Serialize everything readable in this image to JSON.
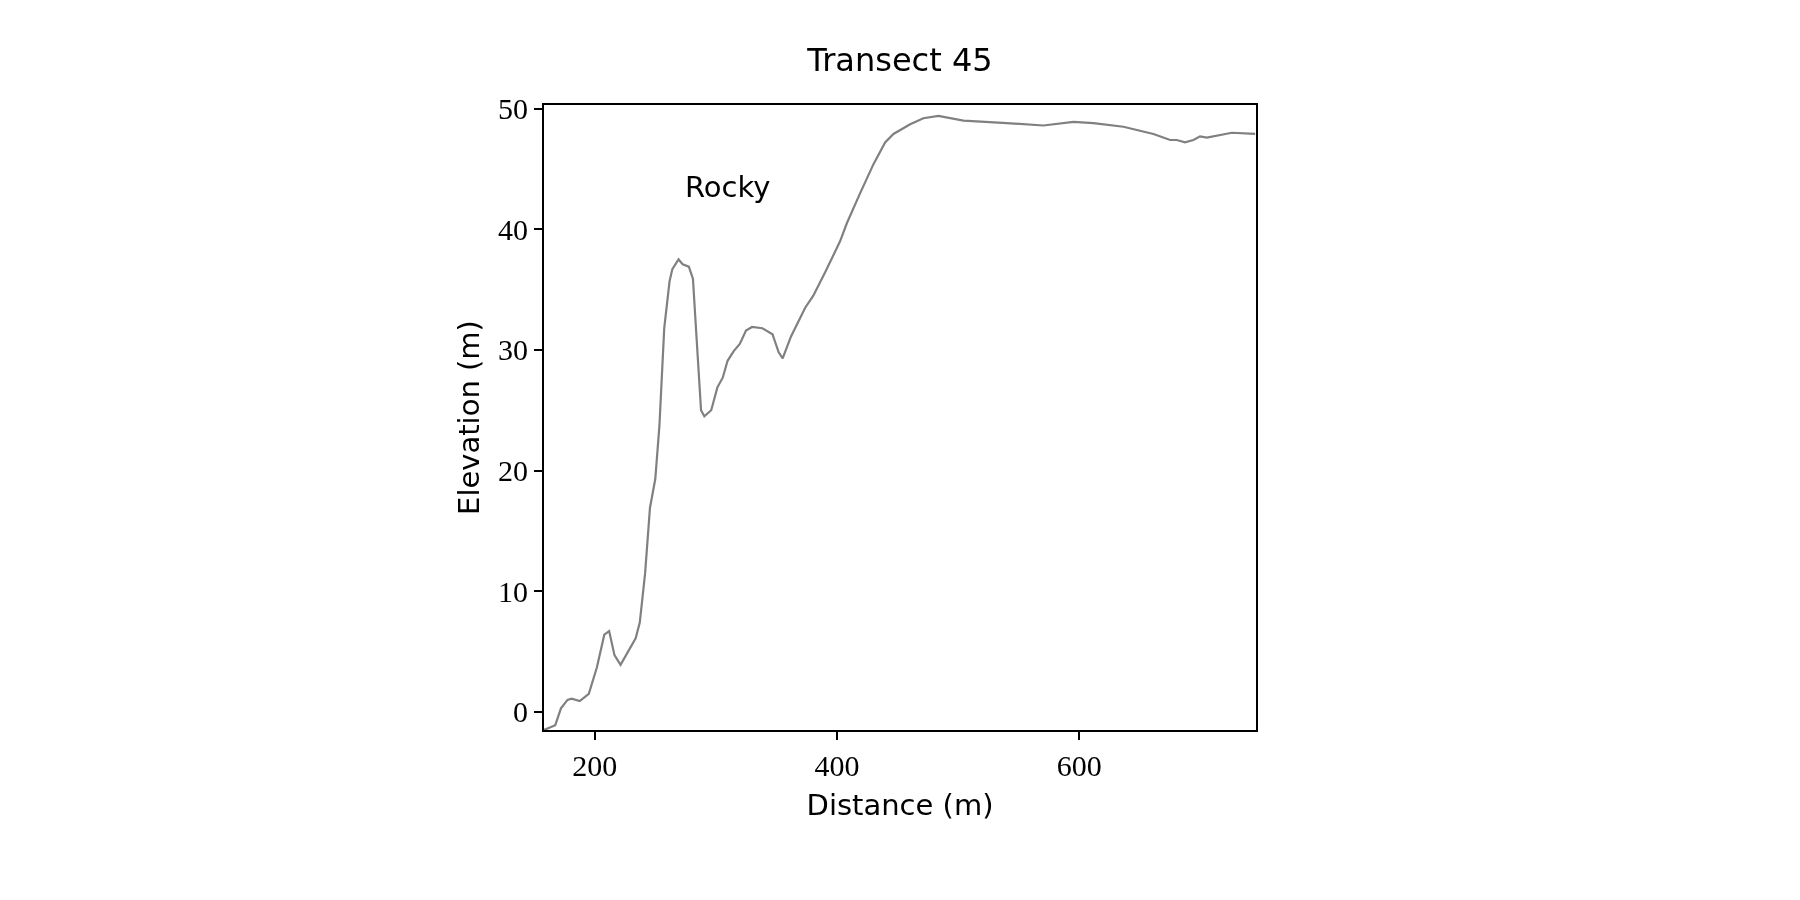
{
  "chart_data": {
    "type": "line",
    "title": "Transect 45",
    "xlabel": "Distance (m)",
    "ylabel": "Elevation (m)",
    "annotations": [
      "Rocky"
    ],
    "x": [
      158,
      167.3,
      172,
      177.4,
      180.8,
      187.5,
      195,
      201.7,
      207.8,
      211.8,
      216.2,
      221.2,
      233.7,
      237.1,
      241.5,
      245.5,
      249.9,
      253.3,
      257.3,
      261.7,
      264,
      269.1,
      272.5,
      277.6,
      281,
      284.3,
      287.7,
      290.4,
      296.1,
      301.2,
      305.6,
      309.6,
      314.7,
      319.7,
      324.8,
      329.8,
      338.3,
      346.7,
      351.8,
      355.1,
      361.9,
      373.7,
      380.4,
      390.5,
      402.5,
      408.1,
      419.1,
      430.1,
      439.7,
      446.6,
      460.4,
      471.3,
      483.7,
      504.4,
      540.2,
      570.4,
      595.2,
      611.7,
      636.5,
      661.3,
      675.1,
      680.6,
      687.4,
      694.3,
      699.8,
      705.4,
      726,
      745.3
    ],
    "series": [
      {
        "color": "#808080",
        "values": [
          -1.5,
          -1.1,
          0.3,
          1.0,
          1.1,
          0.9,
          1.5,
          3.7,
          6.4,
          6.7,
          4.7,
          3.9,
          6.1,
          7.4,
          11.5,
          16.9,
          19.3,
          23.7,
          31.8,
          35.7,
          36.7,
          37.5,
          37.1,
          36.9,
          35.9,
          30.5,
          25.0,
          24.5,
          25.0,
          26.9,
          27.7,
          29.1,
          29.9,
          30.5,
          31.6,
          31.9,
          31.8,
          31.3,
          29.8,
          29.3,
          31.1,
          33.5,
          34.5,
          36.5,
          39.0,
          40.5,
          43.0,
          45.4,
          47.2,
          47.9,
          48.7,
          49.2,
          49.4,
          49.0,
          48.8,
          48.6,
          48.9,
          48.8,
          48.5,
          47.9,
          47.4,
          47.4,
          47.2,
          47.4,
          47.7,
          47.6,
          48.0,
          47.9
        ]
      }
    ],
    "xlim": [
      158,
      746
    ],
    "ylim": [
      -1.5,
      50.3
    ],
    "xticks": [
      200,
      400,
      600
    ],
    "yticks": [
      0,
      10,
      20,
      30,
      40,
      50
    ],
    "marker": "none",
    "line_style": "solid"
  }
}
